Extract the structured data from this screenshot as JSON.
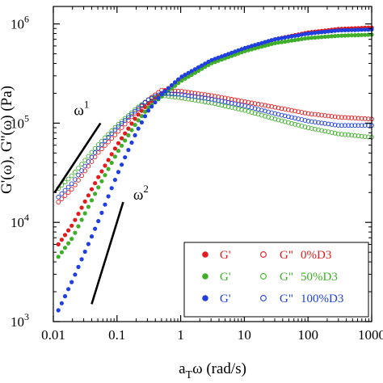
{
  "chart_data": {
    "type": "scatter",
    "title": "",
    "xlabel": "a_Tω (rad/s)",
    "xlabel_parts": {
      "a": "a",
      "sub": "T",
      "rest": "ω (rad/s)"
    },
    "ylabel": "G'(ω), G''(ω) (Pa)",
    "xscale": "log",
    "yscale": "log",
    "xlim": [
      0.01,
      1000
    ],
    "ylim": [
      1000,
      1500000
    ],
    "x_ticks": [
      0.01,
      0.1,
      1,
      10,
      100,
      1000
    ],
    "x_tick_labels": [
      "0.01",
      "0.1",
      "1",
      "10",
      "100",
      "1000"
    ],
    "y_ticks": [
      1000,
      10000,
      100000,
      1000000
    ],
    "y_tick_labels": [
      {
        "base": "10",
        "exp": "3"
      },
      {
        "base": "10",
        "exp": "4"
      },
      {
        "base": "10",
        "exp": "5"
      },
      {
        "base": "10",
        "exp": "6"
      }
    ],
    "slope_annotations": [
      {
        "label": "ω",
        "exp": "1",
        "line": [
          [
            0.0105,
            20000
          ],
          [
            0.055,
            100000
          ]
        ],
        "label_at": [
          0.021,
          120000
        ]
      },
      {
        "label": "ω",
        "exp": "2",
        "line": [
          [
            0.04,
            1500
          ],
          [
            0.125,
            16000
          ]
        ],
        "label_at": [
          0.18,
          17000
        ]
      }
    ],
    "legend": {
      "placement": "bottom-right",
      "entries": [
        {
          "gp_label": "G'",
          "gpp_label": "G\"",
          "sample": "0%D3",
          "color": "#e41a1c"
        },
        {
          "gp_label": "G'",
          "gpp_label": "G\"",
          "sample": "50%D3",
          "color": "#3fae2a"
        },
        {
          "gp_label": "G'",
          "gpp_label": "G\"",
          "sample": "100%D3",
          "color": "#1f3fe0"
        }
      ]
    },
    "series": [
      {
        "name": "G' 0%D3",
        "color": "#e41a1c",
        "marker": "filled",
        "points": [
          [
            0.012,
            6000
          ],
          [
            0.02,
            9500
          ],
          [
            0.05,
            28000
          ],
          [
            0.1,
            60000
          ],
          [
            0.2,
            115000
          ],
          [
            0.3,
            155000
          ],
          [
            0.5,
            200000
          ],
          [
            1,
            280000
          ],
          [
            3,
            420000
          ],
          [
            10,
            560000
          ],
          [
            30,
            700000
          ],
          [
            100,
            820000
          ],
          [
            300,
            890000
          ],
          [
            1000,
            920000
          ]
        ]
      },
      {
        "name": "G\" 0%D3",
        "color": "#e41a1c",
        "marker": "open",
        "points": [
          [
            0.012,
            16000
          ],
          [
            0.02,
            22000
          ],
          [
            0.05,
            50000
          ],
          [
            0.1,
            80000
          ],
          [
            0.2,
            130000
          ],
          [
            0.3,
            170000
          ],
          [
            0.5,
            215000
          ],
          [
            1,
            210000
          ],
          [
            3,
            190000
          ],
          [
            10,
            165000
          ],
          [
            30,
            145000
          ],
          [
            100,
            125000
          ],
          [
            300,
            115000
          ],
          [
            1000,
            110000
          ]
        ]
      },
      {
        "name": "G' 50%D3",
        "color": "#3fae2a",
        "marker": "filled",
        "points": [
          [
            0.012,
            4500
          ],
          [
            0.02,
            7000
          ],
          [
            0.05,
            22000
          ],
          [
            0.1,
            50000
          ],
          [
            0.2,
            100000
          ],
          [
            0.3,
            140000
          ],
          [
            0.5,
            185000
          ],
          [
            1,
            265000
          ],
          [
            3,
            400000
          ],
          [
            10,
            530000
          ],
          [
            30,
            640000
          ],
          [
            100,
            720000
          ],
          [
            300,
            760000
          ],
          [
            1000,
            780000
          ]
        ]
      },
      {
        "name": "G\" 50%D3",
        "color": "#3fae2a",
        "marker": "open",
        "points": [
          [
            0.012,
            22000
          ],
          [
            0.02,
            30000
          ],
          [
            0.05,
            60000
          ],
          [
            0.1,
            95000
          ],
          [
            0.2,
            140000
          ],
          [
            0.3,
            170000
          ],
          [
            0.5,
            190000
          ],
          [
            1,
            180000
          ],
          [
            3,
            160000
          ],
          [
            10,
            135000
          ],
          [
            30,
            110000
          ],
          [
            100,
            90000
          ],
          [
            300,
            78000
          ],
          [
            1000,
            72000
          ]
        ]
      },
      {
        "name": "G' 100%D3",
        "color": "#1f3fe0",
        "marker": "filled",
        "points": [
          [
            0.012,
            1300
          ],
          [
            0.02,
            2600
          ],
          [
            0.05,
            10000
          ],
          [
            0.1,
            30000
          ],
          [
            0.2,
            80000
          ],
          [
            0.3,
            130000
          ],
          [
            0.5,
            195000
          ],
          [
            1,
            290000
          ],
          [
            3,
            430000
          ],
          [
            10,
            570000
          ],
          [
            30,
            700000
          ],
          [
            100,
            800000
          ],
          [
            300,
            860000
          ],
          [
            1000,
            880000
          ]
        ]
      },
      {
        "name": "G\" 100%D3",
        "color": "#1f3fe0",
        "marker": "open",
        "points": [
          [
            0.012,
            18000
          ],
          [
            0.02,
            25000
          ],
          [
            0.05,
            55000
          ],
          [
            0.1,
            90000
          ],
          [
            0.2,
            135000
          ],
          [
            0.3,
            170000
          ],
          [
            0.5,
            200000
          ],
          [
            1,
            195000
          ],
          [
            3,
            175000
          ],
          [
            10,
            150000
          ],
          [
            30,
            125000
          ],
          [
            100,
            105000
          ],
          [
            300,
            95000
          ],
          [
            1000,
            95000
          ]
        ]
      }
    ]
  }
}
